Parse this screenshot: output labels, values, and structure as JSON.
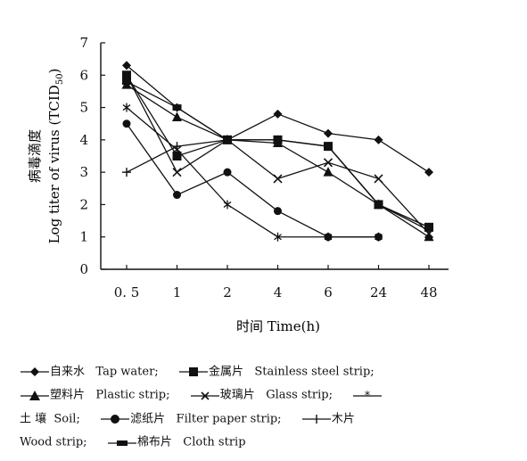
{
  "chart_data": {
    "type": "line",
    "categories": [
      "0. 5",
      "1",
      "2",
      "4",
      "6",
      "24",
      "48"
    ],
    "ylim": [
      0,
      7
    ],
    "yticks": [
      0,
      1,
      2,
      3,
      4,
      5,
      6,
      7
    ],
    "ylabel_cn": "病毒滴度",
    "ylabel_en": "Log titer of virus (TCID",
    "ylabel_sub": "50",
    "ylabel_close": ")",
    "xlabel": "时间 Time(h)",
    "grid": false,
    "legend_position": "bottom",
    "series": [
      {
        "key": "tap",
        "marker": "diamond",
        "values": [
          6.3,
          5.0,
          4.0,
          4.8,
          4.2,
          4.0,
          3.0
        ]
      },
      {
        "key": "steel",
        "marker": "square",
        "values": [
          6.0,
          3.5,
          4.0,
          4.0,
          3.8,
          2.0,
          1.3
        ]
      },
      {
        "key": "plastic",
        "marker": "triangle",
        "values": [
          5.7,
          4.7,
          4.0,
          3.9,
          3.0,
          2.0,
          1.0
        ]
      },
      {
        "key": "glass",
        "marker": "x",
        "values": [
          6.0,
          3.0,
          4.0,
          2.8,
          3.3,
          2.8,
          1.1
        ]
      },
      {
        "key": "soil",
        "marker": "star",
        "values": [
          5.0,
          3.7,
          2.0,
          1.0,
          1.0,
          1.0,
          null
        ]
      },
      {
        "key": "filter",
        "marker": "circle",
        "values": [
          4.5,
          2.3,
          3.0,
          1.8,
          1.0,
          1.0,
          null
        ]
      },
      {
        "key": "wood",
        "marker": "plus",
        "values": [
          3.0,
          3.8,
          4.0,
          4.0,
          3.8,
          2.0,
          1.2
        ]
      },
      {
        "key": "cloth",
        "marker": "rect",
        "values": [
          5.8,
          5.0,
          4.0,
          4.0,
          3.8,
          2.0,
          1.3
        ]
      }
    ]
  },
  "legend": {
    "tap_cn": "自来水",
    "tap_en": "Tap water;",
    "steel_cn": "金属片",
    "steel_en": "Stainless steel strip;",
    "plastic_cn": "塑料片",
    "plastic_en": "Plastic strip;",
    "glass_cn": "玻璃片",
    "glass_en": "Glass strip;",
    "soil_cn": "土 壤",
    "soil_en": "Soil;",
    "filter_cn": "滤纸片",
    "filter_en": "Filter paper strip;",
    "wood_cn": "木片",
    "wood_en": "Wood strip;",
    "cloth_cn": "棉布片",
    "cloth_en": "Cloth strip"
  }
}
